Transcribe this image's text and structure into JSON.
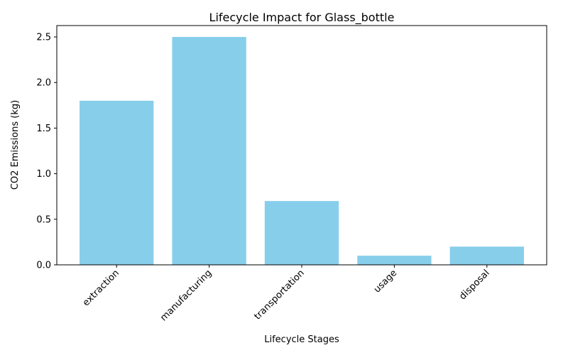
{
  "chart_data": {
    "type": "bar",
    "title": "Lifecycle Impact for Glass_bottle",
    "xlabel": "Lifecycle Stages",
    "ylabel": "CO2 Emissions (kg)",
    "categories": [
      "extraction",
      "manufacturing",
      "transportation",
      "usage",
      "disposal"
    ],
    "values": [
      1.8,
      2.5,
      0.7,
      0.1,
      0.2
    ],
    "ylim": [
      0,
      2.625
    ],
    "yticks": [
      "0.0",
      "0.5",
      "1.0",
      "1.5",
      "2.0",
      "2.5"
    ],
    "grid": false,
    "bar_color": "#87ceeb",
    "x_tick_rotation_deg": 45
  }
}
